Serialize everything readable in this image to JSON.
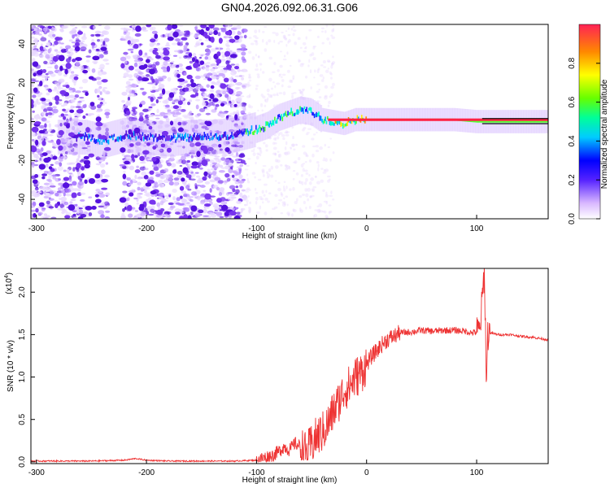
{
  "title": "GN04.2026.092.06.31.G06",
  "chart_data": [
    {
      "type": "heatmap",
      "xlabel": "Height of straight line (km)",
      "ylabel": "Frequency (Hz)",
      "xlim": [
        -305,
        165
      ],
      "ylim": [
        -50,
        50
      ],
      "xticks": [
        -300,
        -200,
        -100,
        0,
        100
      ],
      "yticks": [
        -40,
        -20,
        0,
        20,
        40
      ],
      "ridge": {
        "x": [
          -255,
          -240,
          -220,
          -200,
          -180,
          -160,
          -140,
          -120,
          -100,
          -90,
          -80,
          -70,
          -60,
          -50,
          -40,
          -30,
          -20,
          -10,
          0,
          20,
          50,
          80,
          100,
          130,
          165
        ],
        "y": [
          -8,
          -10,
          -7,
          -8,
          -9,
          -8,
          -8,
          -7,
          -4,
          -2,
          2,
          4,
          6,
          5,
          1,
          0,
          -1,
          1,
          1,
          1,
          1,
          1,
          0,
          0,
          0
        ]
      },
      "colorbar": {
        "label": "Normalized spectral amplitude",
        "ticks": [
          "0.0",
          "0.2",
          "0.4",
          "0.6",
          "0.8"
        ],
        "lim": [
          0,
          1
        ]
      }
    },
    {
      "type": "line",
      "xlabel": "Height of straight line (km)",
      "ylabel": "SNR (10 * v/v)",
      "scale_note": "(x10",
      "scale_exp": "4",
      "line_color": "#ee3333",
      "xlim": [
        -305,
        165
      ],
      "ylim": [
        -0.02,
        2.28
      ],
      "xticks": [
        -300,
        -200,
        -100,
        0,
        100
      ],
      "yticks": [
        "0.0",
        "0.5",
        "1.0",
        "1.5",
        "2.0"
      ],
      "x": [
        -305,
        -280,
        -250,
        -220,
        -210,
        -200,
        -180,
        -150,
        -120,
        -100,
        -95,
        -90,
        -85,
        -80,
        -75,
        -70,
        -65,
        -60,
        -55,
        -50,
        -45,
        -40,
        -35,
        -30,
        -25,
        -20,
        -15,
        -10,
        -5,
        0,
        5,
        10,
        15,
        20,
        25,
        30,
        40,
        50,
        60,
        70,
        80,
        90,
        95,
        100,
        103,
        105,
        107,
        109,
        110,
        112,
        120,
        130,
        140,
        150,
        165
      ],
      "y": [
        0.01,
        0.01,
        0.01,
        0.02,
        0.04,
        0.02,
        0.01,
        0.01,
        0.01,
        0.02,
        0.04,
        0.06,
        0.08,
        0.12,
        0.18,
        0.14,
        0.22,
        0.18,
        0.1,
        0.2,
        0.3,
        0.35,
        0.45,
        0.6,
        0.72,
        0.85,
        0.9,
        1.0,
        1.05,
        1.15,
        1.25,
        1.32,
        1.4,
        1.45,
        1.48,
        1.52,
        1.53,
        1.55,
        1.54,
        1.55,
        1.55,
        1.54,
        1.52,
        1.53,
        1.55,
        1.9,
        2.25,
        0.9,
        1.5,
        1.52,
        1.5,
        1.5,
        1.48,
        1.47,
        1.44
      ]
    }
  ]
}
